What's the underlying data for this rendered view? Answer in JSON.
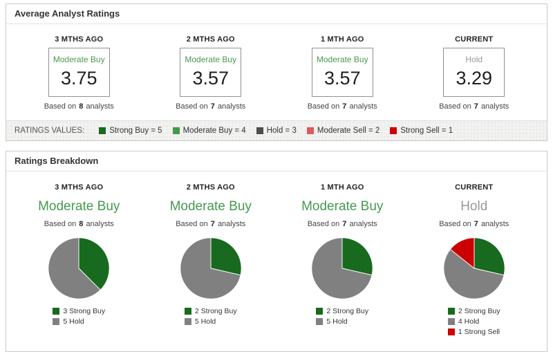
{
  "avg_panel": {
    "title": "Average Analyst Ratings",
    "columns": [
      {
        "period": "3 MTHS AGO",
        "rating": "Moderate Buy",
        "rating_color": "#449a4e",
        "value": "3.75",
        "based_prefix": "Based on",
        "analysts": "8",
        "based_suffix": "analysts"
      },
      {
        "period": "2 MTHS AGO",
        "rating": "Moderate Buy",
        "rating_color": "#449a4e",
        "value": "3.57",
        "based_prefix": "Based on",
        "analysts": "7",
        "based_suffix": "analysts"
      },
      {
        "period": "1 MTH AGO",
        "rating": "Moderate Buy",
        "rating_color": "#449a4e",
        "value": "3.57",
        "based_prefix": "Based on",
        "analysts": "7",
        "based_suffix": "analysts"
      },
      {
        "period": "CURRENT",
        "rating": "Hold",
        "rating_color": "#999999",
        "value": "3.29",
        "based_prefix": "Based on",
        "analysts": "7",
        "based_suffix": "analysts"
      }
    ]
  },
  "ratings_values": {
    "label": "RATINGS VALUES:",
    "items": [
      {
        "label": "Strong Buy = 5",
        "color": "#176a1e"
      },
      {
        "label": "Moderate Buy = 4",
        "color": "#3f9b49"
      },
      {
        "label": "Hold = 3",
        "color": "#4d4d4d"
      },
      {
        "label": "Moderate Sell = 2",
        "color": "#dd5a5a"
      },
      {
        "label": "Strong Sell = 1",
        "color": "#cc0000"
      }
    ]
  },
  "breakdown_panel": {
    "title": "Ratings Breakdown",
    "columns": [
      {
        "period": "3 MTHS AGO",
        "rating": "Moderate Buy",
        "rating_color": "#449a4e",
        "based_prefix": "Based on",
        "analysts": "8",
        "based_suffix": "analysts"
      },
      {
        "period": "2 MTHS AGO",
        "rating": "Moderate Buy",
        "rating_color": "#449a4e",
        "based_prefix": "Based on",
        "analysts": "7",
        "based_suffix": "analysts"
      },
      {
        "period": "1 MTH AGO",
        "rating": "Moderate Buy",
        "rating_color": "#449a4e",
        "based_prefix": "Based on",
        "analysts": "7",
        "based_suffix": "analysts"
      },
      {
        "period": "CURRENT",
        "rating": "Hold",
        "rating_color": "#999999",
        "based_prefix": "Based on",
        "analysts": "7",
        "based_suffix": "analysts"
      }
    ]
  },
  "chart_data": [
    {
      "type": "pie",
      "period": "3 MTHS AGO",
      "title": "Moderate Buy",
      "analysts": 8,
      "labels": [
        "3 Strong Buy",
        "5 Hold"
      ],
      "values": [
        3,
        5
      ],
      "colors": [
        "#176a1e",
        "#808080"
      ]
    },
    {
      "type": "pie",
      "period": "2 MTHS AGO",
      "title": "Moderate Buy",
      "analysts": 7,
      "labels": [
        "2 Strong Buy",
        "5 Hold"
      ],
      "values": [
        2,
        5
      ],
      "colors": [
        "#176a1e",
        "#808080"
      ]
    },
    {
      "type": "pie",
      "period": "1 MTH AGO",
      "title": "Moderate Buy",
      "analysts": 7,
      "labels": [
        "2 Strong Buy",
        "5 Hold"
      ],
      "values": [
        2,
        5
      ],
      "colors": [
        "#176a1e",
        "#808080"
      ]
    },
    {
      "type": "pie",
      "period": "CURRENT",
      "title": "Hold",
      "analysts": 7,
      "labels": [
        "2 Strong Buy",
        "4 Hold",
        "1 Strong Sell"
      ],
      "values": [
        2,
        4,
        1
      ],
      "colors": [
        "#176a1e",
        "#808080",
        "#cc0000"
      ]
    }
  ]
}
